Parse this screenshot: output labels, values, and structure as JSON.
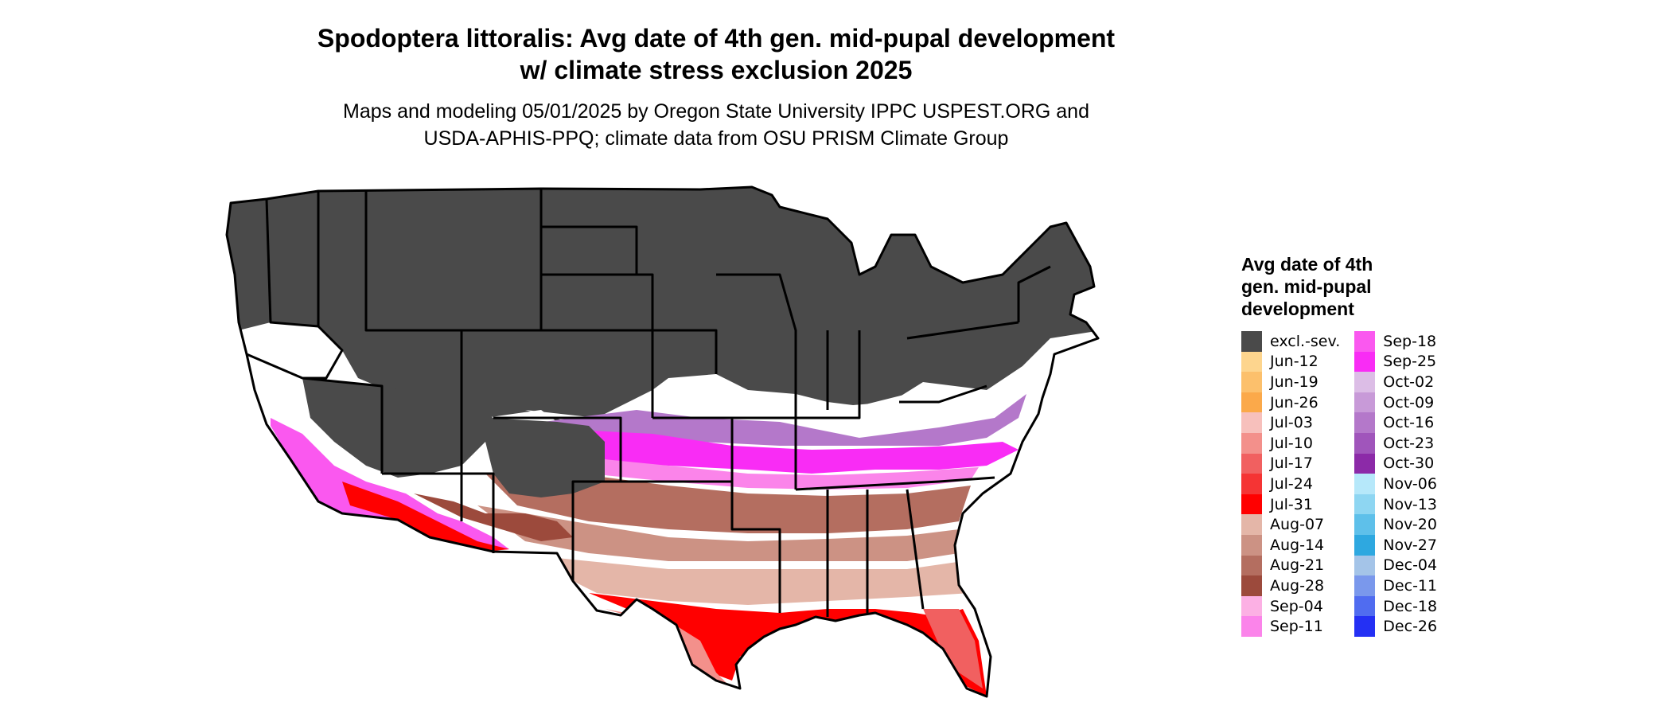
{
  "title": {
    "line1": "Spodoptera littoralis: Avg date of 4th gen. mid-pupal development",
    "line2": "w/ climate stress exclusion 2025"
  },
  "subtitle": {
    "line1": "Maps and modeling 05/01/2025 by Oregon State University IPPC USPEST.ORG and",
    "line2": "USDA-APHIS-PPQ; climate data from OSU PRISM Climate Group"
  },
  "legend": {
    "title": "Avg date of 4th\ngen. mid-pupal\ndevelopment",
    "items": [
      {
        "label": "excl.-sev.",
        "color": "#4a4a4a"
      },
      {
        "label": "Jun-12",
        "color": "#fdd58e"
      },
      {
        "label": "Jun-19",
        "color": "#fcc06c"
      },
      {
        "label": "Jun-26",
        "color": "#fba94a"
      },
      {
        "label": "Jul-03",
        "color": "#f7c0bc"
      },
      {
        "label": "Jul-10",
        "color": "#f3908b"
      },
      {
        "label": "Jul-17",
        "color": "#f16060"
      },
      {
        "label": "Jul-24",
        "color": "#f53434"
      },
      {
        "label": "Jul-31",
        "color": "#ff0000"
      },
      {
        "label": "Aug-07",
        "color": "#e4b6a8"
      },
      {
        "label": "Aug-14",
        "color": "#cc9284"
      },
      {
        "label": "Aug-21",
        "color": "#b46e60"
      },
      {
        "label": "Aug-28",
        "color": "#9c4a3c"
      },
      {
        "label": "Sep-04",
        "color": "#fcb0e4"
      },
      {
        "label": "Sep-11",
        "color": "#fb84ea"
      },
      {
        "label": "Sep-18",
        "color": "#fa58ef"
      },
      {
        "label": "Sep-25",
        "color": "#f92cf5"
      },
      {
        "label": "Oct-02",
        "color": "#dcbde6"
      },
      {
        "label": "Oct-09",
        "color": "#c89ad8"
      },
      {
        "label": "Oct-16",
        "color": "#b478ca"
      },
      {
        "label": "Oct-23",
        "color": "#a055bb"
      },
      {
        "label": "Oct-30",
        "color": "#8c2aa8"
      },
      {
        "label": "Nov-06",
        "color": "#b6e8fa"
      },
      {
        "label": "Nov-13",
        "color": "#8ed6f2"
      },
      {
        "label": "Nov-20",
        "color": "#5ec0ea"
      },
      {
        "label": "Nov-27",
        "color": "#2ea8e0"
      },
      {
        "label": "Dec-04",
        "color": "#a4c4e8"
      },
      {
        "label": "Dec-11",
        "color": "#7a98ec"
      },
      {
        "label": "Dec-18",
        "color": "#506cf0"
      },
      {
        "label": "Dec-26",
        "color": "#2430f4"
      }
    ]
  }
}
